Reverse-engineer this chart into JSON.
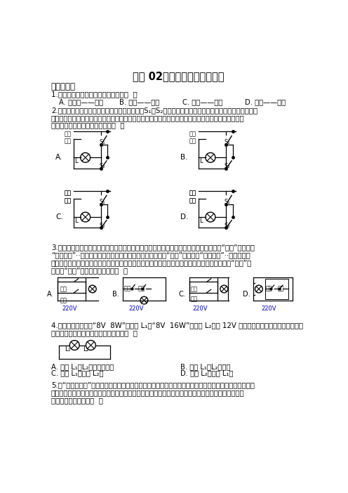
{
  "title": "专题 02：串并联电路设计识别",
  "section1": "一、单选题",
  "q1": "1.下列各物理量对应的单位正确的是（  ）",
  "q1_opts": [
    "A. 电功率——焦耳",
    "B. 电能——瓦特",
    "C. 电流——伏特",
    "D. 电荷——库仓"
  ],
  "q2_text1": "2.小明设计了一种照明电路图，其设计要求是：S₁、S₂分别为楼上和楼下的开关（都是单刀双援开关），",
  "q2_text2": "要求拨动其中任一开关，都能改变电灯原来的发光或息灯状态。所示的四幅电路图中，既符合上述设计",
  "q2_text3": "要求，又符合安全用电要求的是（  ）",
  "q3_text1": "3.居民楼的楼道里，夜间只是偶尔有人经过，电灯总是亮着造成很大浪费。科研人员利用“光敏”材料制在",
  "q3_text2": "“光控开关”··天黑时，自动闭合，天亮时，自动断开；利用“声敏”材料造成“声控开关”··当有人走动",
  "q3_text3": "发出声音时，自动闭合，无人走动时自动断开。若将这两种开关配合使用，就可以使楼道灯变得“聪明”，",
  "q3_text4": "则这种“聪明”的电路是下图中的（  ）",
  "q4_text1": "4.如图所示，将标有“8V  8W”的灯泡 L₁和“8V  16W”的灯泡 L₂接在 12V 的电路中，闭合开关，不考虑温度",
  "q4_text2": "对灯丝电阔的影响，下列说法正确的是（  ）",
  "q4_opts": [
    "A. 灯泡 L₁、L₂都能正常发光",
    "B. 灯泡 L₁、L₂一样亮",
    "C. 灯泡 L₁比灯泡 L₂亮",
    "D. 灯泡 L₂比灯泡 L₁亮"
  ],
  "q5_text1": "5.在“单位体前屈”测试中，测试者向前推动滑块，滑块被推动的距离越大，测试仪的示数就越大。小科同",
  "q5_text2": "学想在测试仪中引入滑动变阔器，设计了如图所示的两种电路，其中滑动变阔器的滑片向右滑动时，电",
  "q5_text3": "表示数增大的电路是（  ）",
  "bg_color": "#ffffff",
  "text_color": "#000000"
}
